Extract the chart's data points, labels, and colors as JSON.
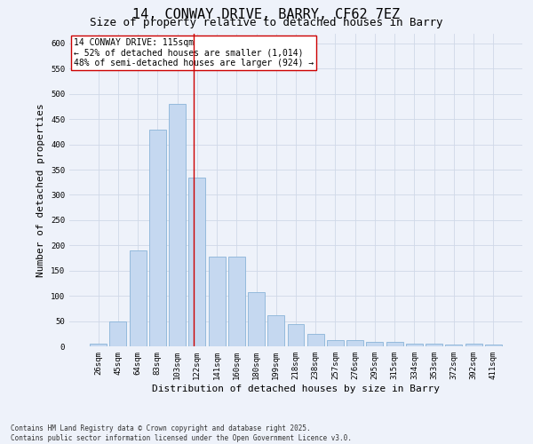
{
  "title": "14, CONWAY DRIVE, BARRY, CF62 7EZ",
  "subtitle": "Size of property relative to detached houses in Barry",
  "xlabel": "Distribution of detached houses by size in Barry",
  "ylabel": "Number of detached properties",
  "categories": [
    "26sqm",
    "45sqm",
    "64sqm",
    "83sqm",
    "103sqm",
    "122sqm",
    "141sqm",
    "160sqm",
    "180sqm",
    "199sqm",
    "218sqm",
    "238sqm",
    "257sqm",
    "276sqm",
    "295sqm",
    "315sqm",
    "334sqm",
    "353sqm",
    "372sqm",
    "392sqm",
    "411sqm"
  ],
  "values": [
    5,
    50,
    190,
    430,
    480,
    335,
    178,
    178,
    108,
    62,
    44,
    25,
    12,
    12,
    8,
    8,
    5,
    5,
    3,
    5,
    3
  ],
  "bar_color": "#c5d8f0",
  "bar_edge_color": "#8ab4d8",
  "grid_color": "#d0d8e8",
  "background_color": "#eef2fa",
  "vline_x_index": 4.85,
  "vline_color": "#cc0000",
  "annotation_box_text": "14 CONWAY DRIVE: 115sqm\n← 52% of detached houses are smaller (1,014)\n48% of semi-detached houses are larger (924) →",
  "footer_text": "Contains HM Land Registry data © Crown copyright and database right 2025.\nContains public sector information licensed under the Open Government Licence v3.0.",
  "ylim": [
    0,
    620
  ],
  "yticks": [
    0,
    50,
    100,
    150,
    200,
    250,
    300,
    350,
    400,
    450,
    500,
    550,
    600
  ],
  "title_fontsize": 11,
  "subtitle_fontsize": 9,
  "xlabel_fontsize": 8,
  "ylabel_fontsize": 8,
  "tick_fontsize": 6.5,
  "annot_fontsize": 7,
  "footer_fontsize": 5.5
}
